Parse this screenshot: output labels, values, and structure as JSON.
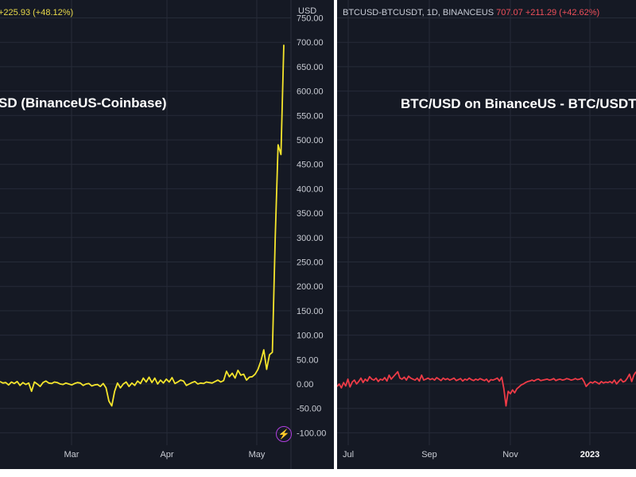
{
  "panels": {
    "left": {
      "legend": "+225.93 (+48.12%)",
      "title": "SD (BinanceUS-Coinbase)",
      "currency": "USD",
      "icon": "lightning-icon"
    },
    "right": {
      "legend_symbol": "BTCUSD-BTCUSDT, 1D, BINANCEUS",
      "legend_change": "707.07  +211.29 (+42.62%)",
      "title": "BTC/USD on BinanceUS - BTC/USDT o"
    }
  },
  "colors": {
    "background": "#151924",
    "grid": "#262b38",
    "left_line": "#f5e52c",
    "right_line": "#ef3b47",
    "divider": "#ffffff"
  },
  "chart_data": [
    {
      "type": "line",
      "title": "",
      "ylabel": "USD",
      "ylim": [
        -100,
        750
      ],
      "yticks": [
        "750.00",
        "700.00",
        "650.00",
        "600.00",
        "550.00",
        "500.00",
        "450.00",
        "400.00",
        "350.00",
        "300.00",
        "250.00",
        "200.00",
        "150.00",
        "100.00",
        "50.00",
        "0.00",
        "-50.00",
        "-100.00"
      ],
      "xticks": [
        "Mar",
        "Apr",
        "May"
      ],
      "grid": true,
      "series": [
        {
          "name": "",
          "values": [
            5,
            2,
            3,
            -2,
            4,
            1,
            5,
            -3,
            3,
            -1,
            2,
            -15,
            4,
            0,
            -5,
            3,
            6,
            2,
            1,
            4,
            3,
            0,
            -1,
            2,
            0,
            -2,
            1,
            3,
            2,
            -3,
            0,
            1,
            -4,
            -2,
            -1,
            -5,
            1,
            -8,
            -35,
            -45,
            -15,
            2,
            -8,
            0,
            4,
            -5,
            2,
            -3,
            6,
            1,
            12,
            4,
            14,
            3,
            12,
            0,
            8,
            2,
            10,
            4,
            13,
            1,
            4,
            8,
            6,
            -3,
            0,
            3,
            5,
            0,
            2,
            1,
            4,
            3,
            2,
            5,
            8,
            4,
            7,
            26,
            15,
            22,
            12,
            28,
            18,
            20,
            8,
            14,
            15,
            20,
            30,
            47,
            70,
            30,
            60,
            65,
            300,
            490,
            470,
            695
          ]
        }
      ]
    },
    {
      "type": "line",
      "title": "",
      "ylim": [
        -100,
        750
      ],
      "xticks": [
        "Jul",
        "Sep",
        "Nov",
        "2023"
      ],
      "xticks_bold": [
        "2023"
      ],
      "grid": true,
      "series": [
        {
          "name": "",
          "values": [
            -5,
            0,
            -8,
            3,
            -4,
            10,
            -6,
            4,
            8,
            0,
            5,
            12,
            3,
            10,
            6,
            15,
            10,
            8,
            12,
            5,
            10,
            8,
            13,
            6,
            18,
            10,
            15,
            20,
            25,
            12,
            10,
            14,
            8,
            16,
            12,
            10,
            8,
            12,
            6,
            18,
            8,
            10,
            12,
            9,
            11,
            8,
            13,
            10,
            7,
            12,
            9,
            11,
            8,
            10,
            12,
            7,
            9,
            11,
            6,
            10,
            8,
            12,
            9,
            7,
            10,
            8,
            11,
            9,
            7,
            10,
            4,
            9,
            8,
            10,
            12,
            6,
            14,
            -10,
            -45,
            -15,
            -20,
            -12,
            -18,
            -10,
            -6,
            -2,
            0,
            3,
            5,
            6,
            8,
            6,
            9,
            10,
            7,
            8,
            9,
            10,
            8,
            9,
            11,
            7,
            9,
            10,
            8,
            9,
            11,
            10,
            8,
            9,
            11,
            9,
            10,
            12,
            5,
            -5,
            0,
            4,
            2,
            5,
            3,
            0,
            5,
            2,
            4,
            3,
            5,
            2,
            8,
            0,
            5,
            10,
            4,
            6,
            12,
            20,
            5,
            18,
            25
          ]
        }
      ]
    }
  ]
}
